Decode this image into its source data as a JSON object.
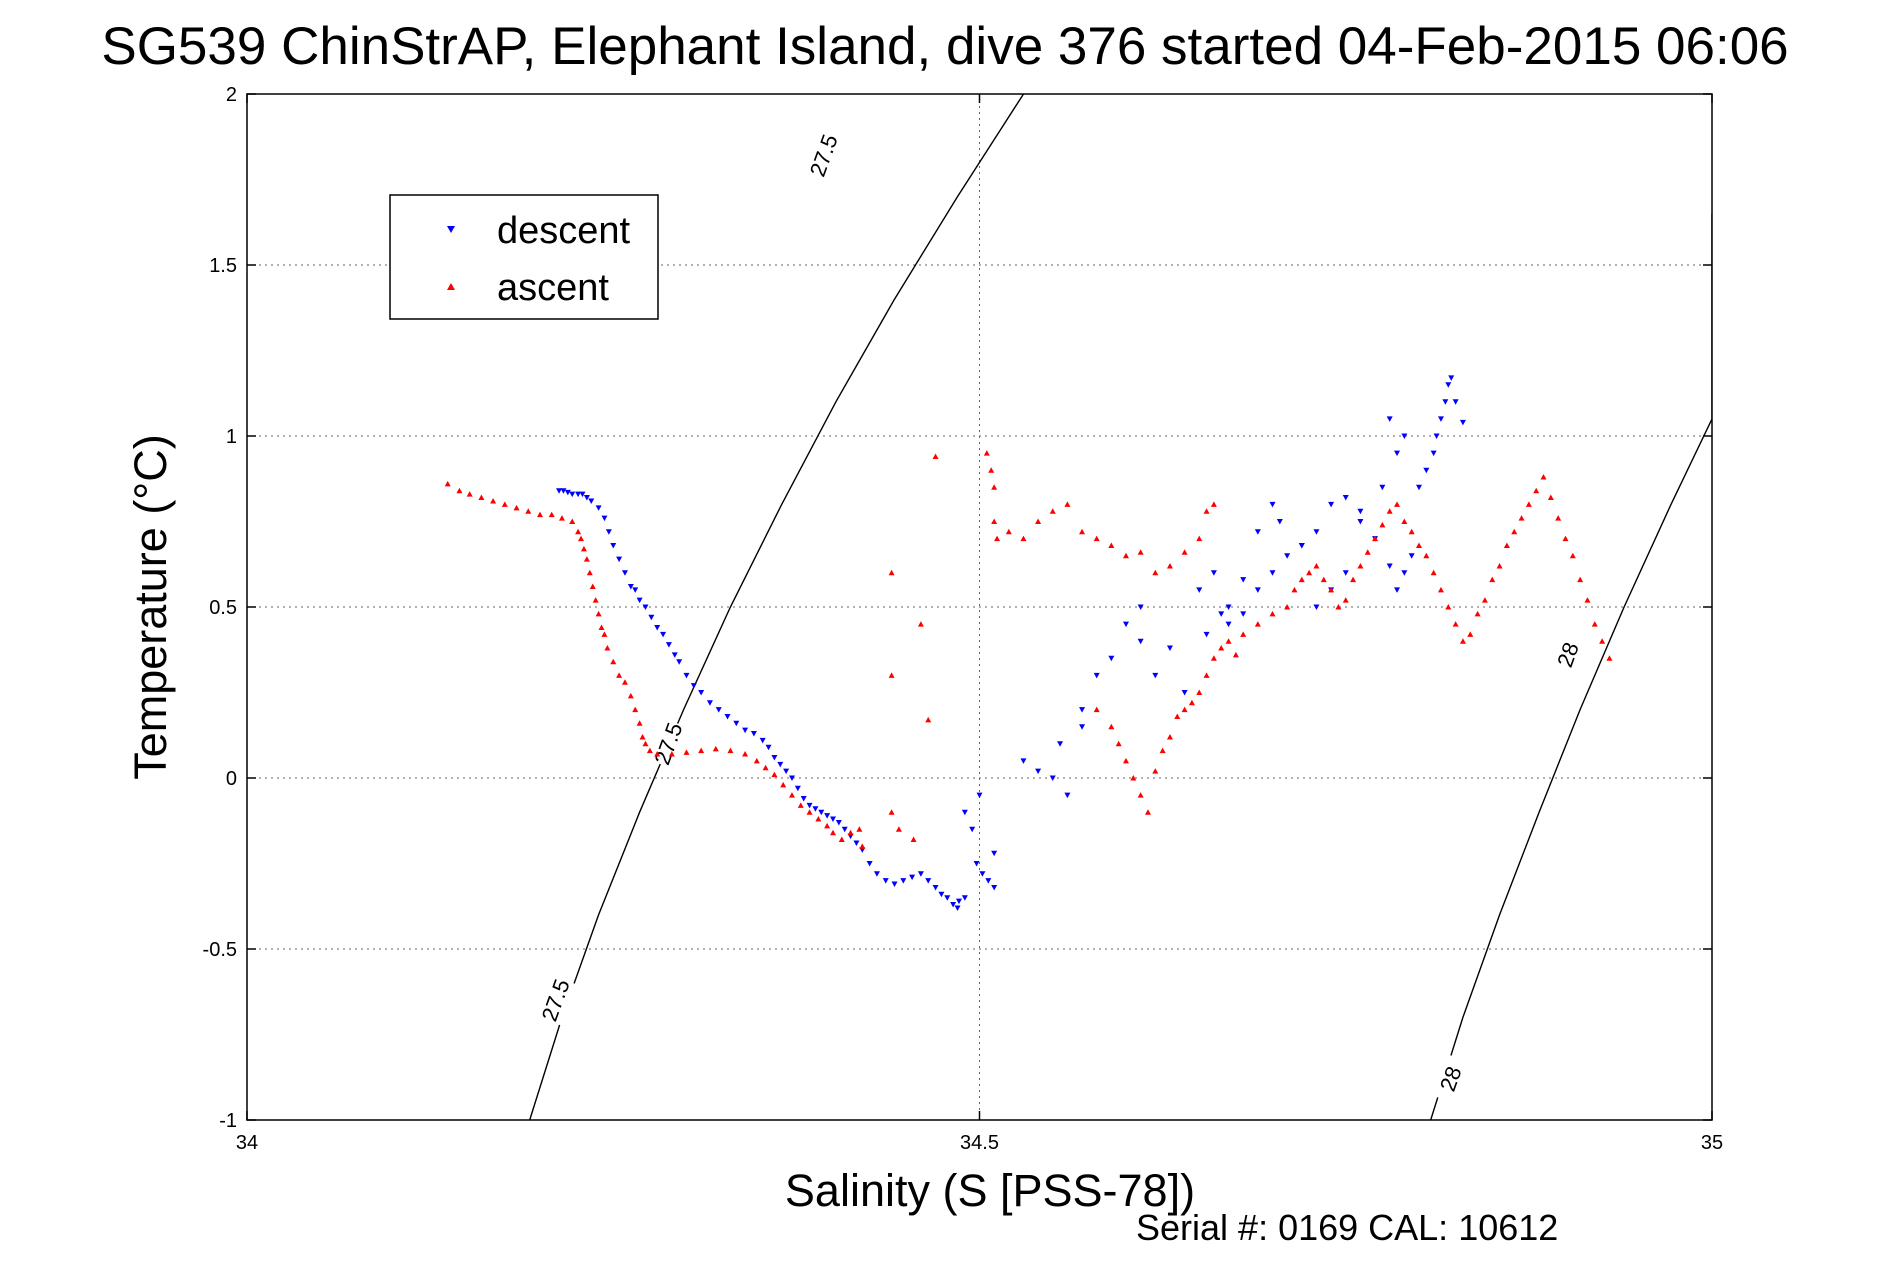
{
  "footer": {
    "serial": "Serial #: 0169 CAL: 10612"
  },
  "chart_data": {
    "type": "scatter",
    "title": "SG539 ChinStrAP, Elephant Island, dive 376 started 04-Feb-2015 06:06",
    "xlabel": "Salinity (S [PSS-78])",
    "ylabel": "Temperature (°C)",
    "xlim": [
      34,
      35
    ],
    "ylim": [
      -1,
      2
    ],
    "xticks": [
      "34",
      "34.5",
      "35"
    ],
    "yticks": [
      "-1",
      "-0.5",
      "0",
      "0.5",
      "1",
      "1.5",
      "2"
    ],
    "grid": true,
    "legend_position": "top-left",
    "contours": [
      {
        "level": "27.5",
        "points": [
          [
            34.193,
            -1.0
          ],
          [
            34.215,
            -0.7
          ],
          [
            34.24,
            -0.4
          ],
          [
            34.268,
            -0.1
          ],
          [
            34.298,
            0.2
          ],
          [
            34.33,
            0.5
          ],
          [
            34.365,
            0.8
          ],
          [
            34.402,
            1.1
          ],
          [
            34.442,
            1.4
          ],
          [
            34.485,
            1.7
          ],
          [
            34.53,
            2.0
          ]
        ],
        "labels": [
          [
            34.211,
            -0.65,
            "27.5"
          ],
          [
            34.288,
            0.1,
            "27.5"
          ],
          [
            34.394,
            1.82,
            "27.5"
          ]
        ]
      },
      {
        "level": "28",
        "points": [
          [
            34.808,
            -1.0
          ],
          [
            34.83,
            -0.7
          ],
          [
            34.855,
            -0.4
          ],
          [
            34.882,
            -0.1
          ],
          [
            34.91,
            0.2
          ],
          [
            34.94,
            0.5
          ],
          [
            34.972,
            0.8
          ],
          [
            35.0,
            1.05
          ],
          [
            35.0,
            1.65
          ]
        ],
        "labels": [
          [
            34.822,
            -0.88,
            "28"
          ],
          [
            34.902,
            0.36,
            "28"
          ]
        ]
      }
    ],
    "series": [
      {
        "name": "descent",
        "color": "#0000ff",
        "marker": "triangle-down",
        "points": [
          [
            34.213,
            0.84
          ],
          [
            34.216,
            0.84
          ],
          [
            34.219,
            0.835
          ],
          [
            34.222,
            0.83
          ],
          [
            34.226,
            0.83
          ],
          [
            34.229,
            0.83
          ],
          [
            34.232,
            0.82
          ],
          [
            34.235,
            0.81
          ],
          [
            34.24,
            0.79
          ],
          [
            34.244,
            0.76
          ],
          [
            34.247,
            0.72
          ],
          [
            34.25,
            0.68
          ],
          [
            34.254,
            0.64
          ],
          [
            34.258,
            0.6
          ],
          [
            34.262,
            0.56
          ],
          [
            34.265,
            0.55
          ],
          [
            34.268,
            0.52
          ],
          [
            34.272,
            0.5
          ],
          [
            34.276,
            0.47
          ],
          [
            34.28,
            0.44
          ],
          [
            34.284,
            0.42
          ],
          [
            34.288,
            0.39
          ],
          [
            34.292,
            0.36
          ],
          [
            34.295,
            0.34
          ],
          [
            34.3,
            0.3
          ],
          [
            34.305,
            0.27
          ],
          [
            34.31,
            0.25
          ],
          [
            34.316,
            0.22
          ],
          [
            34.322,
            0.2
          ],
          [
            34.328,
            0.18
          ],
          [
            34.334,
            0.16
          ],
          [
            34.34,
            0.14
          ],
          [
            34.346,
            0.13
          ],
          [
            34.352,
            0.11
          ],
          [
            34.356,
            0.09
          ],
          [
            34.36,
            0.06
          ],
          [
            34.364,
            0.04
          ],
          [
            34.368,
            0.02
          ],
          [
            34.372,
            0.0
          ],
          [
            34.376,
            -0.03
          ],
          [
            34.38,
            -0.06
          ],
          [
            34.384,
            -0.08
          ],
          [
            34.388,
            -0.09
          ],
          [
            34.392,
            -0.1
          ],
          [
            34.396,
            -0.11
          ],
          [
            34.4,
            -0.12
          ],
          [
            34.404,
            -0.13
          ],
          [
            34.408,
            -0.15
          ],
          [
            34.412,
            -0.17
          ],
          [
            34.416,
            -0.19
          ],
          [
            34.42,
            -0.21
          ],
          [
            34.425,
            -0.25
          ],
          [
            34.43,
            -0.28
          ],
          [
            34.436,
            -0.3
          ],
          [
            34.442,
            -0.31
          ],
          [
            34.448,
            -0.3
          ],
          [
            34.454,
            -0.29
          ],
          [
            34.46,
            -0.28
          ],
          [
            34.465,
            -0.3
          ],
          [
            34.47,
            -0.32
          ],
          [
            34.474,
            -0.34
          ],
          [
            34.478,
            -0.35
          ],
          [
            34.482,
            -0.37
          ],
          [
            34.485,
            -0.38
          ],
          [
            34.49,
            -0.35
          ],
          [
            34.486,
            -0.36
          ],
          [
            34.49,
            -0.1
          ],
          [
            34.495,
            -0.15
          ],
          [
            34.498,
            -0.25
          ],
          [
            34.502,
            -0.28
          ],
          [
            34.506,
            -0.3
          ],
          [
            34.51,
            -0.22
          ],
          [
            34.5,
            -0.05
          ],
          [
            34.51,
            -0.32
          ],
          [
            34.53,
            0.05
          ],
          [
            34.54,
            0.02
          ],
          [
            34.55,
            0.0
          ],
          [
            34.56,
            -0.05
          ],
          [
            34.57,
            0.15
          ],
          [
            34.58,
            0.3
          ],
          [
            34.6,
            0.45
          ],
          [
            34.61,
            0.5
          ],
          [
            34.62,
            0.3
          ],
          [
            34.64,
            0.25
          ],
          [
            34.65,
            0.55
          ],
          [
            34.66,
            0.6
          ],
          [
            34.67,
            0.5
          ],
          [
            34.67,
            0.45
          ],
          [
            34.68,
            0.48
          ],
          [
            34.69,
            0.55
          ],
          [
            34.7,
            0.6
          ],
          [
            34.71,
            0.65
          ],
          [
            34.72,
            0.68
          ],
          [
            34.73,
            0.72
          ],
          [
            34.74,
            0.8
          ],
          [
            34.75,
            0.82
          ],
          [
            34.76,
            0.78
          ],
          [
            34.77,
            0.7
          ],
          [
            34.78,
            0.62
          ],
          [
            34.785,
            0.55
          ],
          [
            34.79,
            0.6
          ],
          [
            34.795,
            0.65
          ],
          [
            34.8,
            0.85
          ],
          [
            34.805,
            0.9
          ],
          [
            34.81,
            0.95
          ],
          [
            34.812,
            1.0
          ],
          [
            34.815,
            1.05
          ],
          [
            34.818,
            1.1
          ],
          [
            34.82,
            1.15
          ],
          [
            34.822,
            1.17
          ],
          [
            34.825,
            1.1
          ],
          [
            34.83,
            1.04
          ],
          [
            34.79,
            1.0
          ],
          [
            34.785,
            0.95
          ],
          [
            34.78,
            1.05
          ],
          [
            34.775,
            0.85
          ],
          [
            34.76,
            0.75
          ],
          [
            34.75,
            0.6
          ],
          [
            34.74,
            0.55
          ],
          [
            34.73,
            0.5
          ],
          [
            34.72,
            0.68
          ],
          [
            34.705,
            0.75
          ],
          [
            34.7,
            0.8
          ],
          [
            34.69,
            0.72
          ],
          [
            34.68,
            0.58
          ],
          [
            34.665,
            0.48
          ],
          [
            34.655,
            0.42
          ],
          [
            34.63,
            0.38
          ],
          [
            34.61,
            0.4
          ],
          [
            34.59,
            0.35
          ],
          [
            34.57,
            0.2
          ],
          [
            34.555,
            0.1
          ]
        ]
      },
      {
        "name": "ascent",
        "color": "#ff0000",
        "marker": "triangle-up",
        "points": [
          [
            34.137,
            0.86
          ],
          [
            34.145,
            0.84
          ],
          [
            34.152,
            0.83
          ],
          [
            34.16,
            0.82
          ],
          [
            34.168,
            0.81
          ],
          [
            34.176,
            0.8
          ],
          [
            34.184,
            0.79
          ],
          [
            34.192,
            0.78
          ],
          [
            34.2,
            0.77
          ],
          [
            34.208,
            0.77
          ],
          [
            34.215,
            0.76
          ],
          [
            34.222,
            0.75
          ],
          [
            34.226,
            0.72
          ],
          [
            34.228,
            0.7
          ],
          [
            34.23,
            0.67
          ],
          [
            34.232,
            0.64
          ],
          [
            34.234,
            0.6
          ],
          [
            34.236,
            0.56
          ],
          [
            34.238,
            0.52
          ],
          [
            34.24,
            0.48
          ],
          [
            34.242,
            0.44
          ],
          [
            34.244,
            0.42
          ],
          [
            34.246,
            0.38
          ],
          [
            34.25,
            0.34
          ],
          [
            34.254,
            0.3
          ],
          [
            34.258,
            0.28
          ],
          [
            34.262,
            0.24
          ],
          [
            34.265,
            0.2
          ],
          [
            34.268,
            0.16
          ],
          [
            34.27,
            0.12
          ],
          [
            34.272,
            0.1
          ],
          [
            34.275,
            0.08
          ],
          [
            34.28,
            0.07
          ],
          [
            34.29,
            0.07
          ],
          [
            34.3,
            0.075
          ],
          [
            34.31,
            0.08
          ],
          [
            34.32,
            0.085
          ],
          [
            34.33,
            0.08
          ],
          [
            34.34,
            0.07
          ],
          [
            34.348,
            0.05
          ],
          [
            34.354,
            0.03
          ],
          [
            34.36,
            0.01
          ],
          [
            34.366,
            -0.02
          ],
          [
            34.372,
            -0.05
          ],
          [
            34.378,
            -0.08
          ],
          [
            34.384,
            -0.1
          ],
          [
            34.39,
            -0.12
          ],
          [
            34.396,
            -0.14
          ],
          [
            34.4,
            -0.16
          ],
          [
            34.406,
            -0.18
          ],
          [
            34.412,
            -0.16
          ],
          [
            34.418,
            -0.15
          ],
          [
            34.44,
            0.6
          ],
          [
            34.44,
            0.3
          ],
          [
            34.46,
            0.45
          ],
          [
            34.465,
            0.17
          ],
          [
            34.47,
            0.94
          ],
          [
            34.44,
            -0.1
          ],
          [
            34.445,
            -0.15
          ],
          [
            34.455,
            -0.18
          ],
          [
            34.42,
            -0.2
          ],
          [
            34.505,
            0.95
          ],
          [
            34.508,
            0.9
          ],
          [
            34.51,
            0.85
          ],
          [
            34.51,
            0.75
          ],
          [
            34.512,
            0.7
          ],
          [
            34.52,
            0.72
          ],
          [
            34.53,
            0.7
          ],
          [
            34.54,
            0.75
          ],
          [
            34.55,
            0.78
          ],
          [
            34.56,
            0.8
          ],
          [
            34.57,
            0.72
          ],
          [
            34.58,
            0.7
          ],
          [
            34.59,
            0.68
          ],
          [
            34.6,
            0.65
          ],
          [
            34.61,
            0.66
          ],
          [
            34.62,
            0.6
          ],
          [
            34.63,
            0.62
          ],
          [
            34.64,
            0.66
          ],
          [
            34.65,
            0.7
          ],
          [
            34.655,
            0.78
          ],
          [
            34.66,
            0.8
          ],
          [
            34.58,
            0.2
          ],
          [
            34.59,
            0.15
          ],
          [
            34.595,
            0.1
          ],
          [
            34.6,
            0.05
          ],
          [
            34.605,
            0.0
          ],
          [
            34.61,
            -0.05
          ],
          [
            34.615,
            -0.1
          ],
          [
            34.62,
            0.02
          ],
          [
            34.625,
            0.08
          ],
          [
            34.63,
            0.12
          ],
          [
            34.635,
            0.18
          ],
          [
            34.64,
            0.2
          ],
          [
            34.645,
            0.22
          ],
          [
            34.65,
            0.25
          ],
          [
            34.655,
            0.3
          ],
          [
            34.66,
            0.35
          ],
          [
            34.665,
            0.38
          ],
          [
            34.67,
            0.4
          ],
          [
            34.675,
            0.36
          ],
          [
            34.68,
            0.42
          ],
          [
            34.69,
            0.45
          ],
          [
            34.7,
            0.48
          ],
          [
            34.71,
            0.5
          ],
          [
            34.715,
            0.55
          ],
          [
            34.72,
            0.58
          ],
          [
            34.725,
            0.6
          ],
          [
            34.73,
            0.62
          ],
          [
            34.735,
            0.58
          ],
          [
            34.74,
            0.55
          ],
          [
            34.745,
            0.5
          ],
          [
            34.75,
            0.52
          ],
          [
            34.755,
            0.58
          ],
          [
            34.76,
            0.62
          ],
          [
            34.765,
            0.66
          ],
          [
            34.77,
            0.7
          ],
          [
            34.775,
            0.74
          ],
          [
            34.78,
            0.78
          ],
          [
            34.785,
            0.8
          ],
          [
            34.79,
            0.75
          ],
          [
            34.795,
            0.72
          ],
          [
            34.8,
            0.68
          ],
          [
            34.805,
            0.65
          ],
          [
            34.81,
            0.6
          ],
          [
            34.815,
            0.55
          ],
          [
            34.82,
            0.5
          ],
          [
            34.825,
            0.45
          ],
          [
            34.83,
            0.4
          ],
          [
            34.835,
            0.42
          ],
          [
            34.84,
            0.48
          ],
          [
            34.845,
            0.52
          ],
          [
            34.85,
            0.58
          ],
          [
            34.855,
            0.62
          ],
          [
            34.86,
            0.68
          ],
          [
            34.865,
            0.72
          ],
          [
            34.87,
            0.76
          ],
          [
            34.875,
            0.8
          ],
          [
            34.88,
            0.84
          ],
          [
            34.885,
            0.88
          ],
          [
            34.89,
            0.82
          ],
          [
            34.895,
            0.76
          ],
          [
            34.9,
            0.7
          ],
          [
            34.905,
            0.65
          ],
          [
            34.91,
            0.58
          ],
          [
            34.915,
            0.52
          ],
          [
            34.92,
            0.45
          ],
          [
            34.925,
            0.4
          ],
          [
            34.93,
            0.35
          ]
        ]
      }
    ]
  }
}
